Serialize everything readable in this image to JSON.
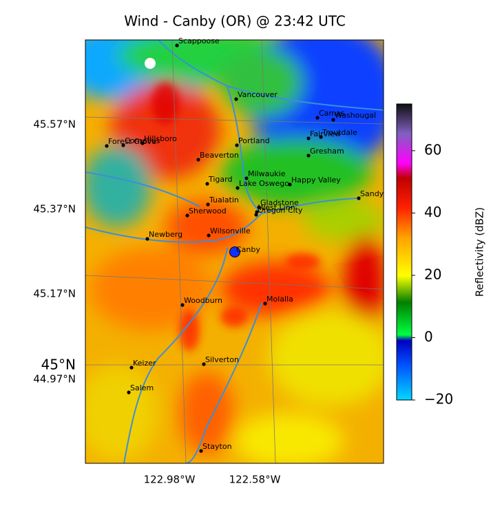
{
  "title": "Wind - Canby (OR) @ 23:42 UTC",
  "x_axis_labels": [
    "122.98°W",
    "122.58°W"
  ],
  "y_axis_labels": [
    "45.57°N",
    "45.37°N",
    "45°N",
    "45.17°N",
    "44.97°N"
  ],
  "radar_site": "Canby",
  "cities": [
    "Scappoose",
    "Vancouver",
    "Camas",
    "Washougal",
    "Fairview",
    "Troutdale",
    "Gresham",
    "Forest Grove",
    "Cornelius",
    "Hillsboro",
    "Beaverton",
    "Portland",
    "Milwaukie",
    "Happy Valley",
    "Tigard",
    "Lake Oswego",
    "Sandy",
    "Tualatin",
    "Gladstone",
    "West Linn",
    "Oregon City",
    "Sherwood",
    "Wilsonville",
    "Newberg",
    "Woodburn",
    "Molalla",
    "Keizer",
    "Silverton",
    "Salem",
    "Stayton"
  ],
  "colorbar": {
    "label": "Reflectivity (dBZ)",
    "range": [
      -20,
      75
    ],
    "ticks": [
      {
        "value": -20,
        "label": "−20"
      },
      0,
      20,
      40,
      60
    ]
  }
}
